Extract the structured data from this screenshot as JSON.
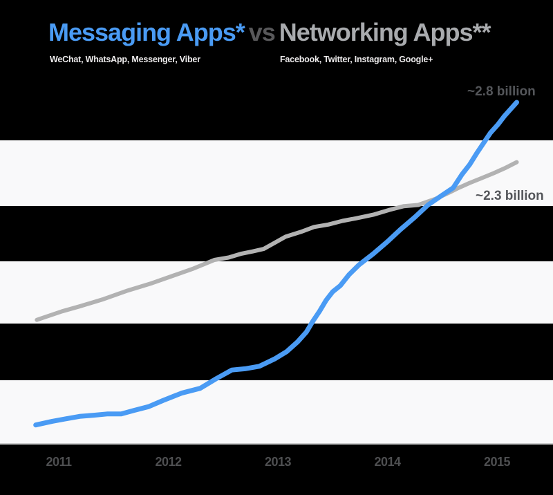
{
  "header": {
    "title_messaging": "Messaging Apps*",
    "title_vs": "vs",
    "title_networking": "Networking Apps**",
    "subtitle_messaging": "WeChat, WhatsApp, Messenger, Viber",
    "subtitle_networking": "Facebook, Twitter, Instagram, Google+"
  },
  "colors": {
    "messaging_line": "#4a9bf4",
    "networking_line": "#b2b2b2",
    "title_messaging": "#4a9bf4",
    "title_vs": "#58585a",
    "title_networking": "#a9abae",
    "subtitle_text": "#edebec",
    "annotation_text": "#54565a",
    "year_label": "#4e4f51",
    "band_white": "#f9f9fa",
    "background": "#000000",
    "axis_line": "#cbcccd"
  },
  "chart_data": {
    "type": "line",
    "title": "Messaging Apps* vs Networking Apps**",
    "xlabel": "",
    "ylabel": "",
    "value_unit": "billion",
    "x_ticks": [
      "2011",
      "2012",
      "2013",
      "2014",
      "2015"
    ],
    "xlim": [
      2010.75,
      2015.25
    ],
    "ylim": [
      0,
      3.0
    ],
    "gridbands_white_value_ranges": [
      [
        0,
        0.5
      ],
      [
        1.0,
        1.5
      ],
      [
        2.0,
        2.5
      ]
    ],
    "legend": "color-coded title",
    "annotations": [
      {
        "text": "~2.8 billion",
        "series": "Messaging Apps",
        "at_x": 2015.18,
        "at_y": 2.8
      },
      {
        "text": "~2.3 billion",
        "series": "Networking Apps",
        "at_x": 2015.18,
        "at_y": 2.31
      }
    ],
    "series": [
      {
        "name": "Messaging Apps",
        "color_key": "messaging_line",
        "stroke_width": 7,
        "points": [
          [
            2010.79,
            0.16
          ],
          [
            2010.94,
            0.19
          ],
          [
            2011.06,
            0.21
          ],
          [
            2011.19,
            0.23
          ],
          [
            2011.32,
            0.24
          ],
          [
            2011.44,
            0.25
          ],
          [
            2011.57,
            0.25
          ],
          [
            2011.69,
            0.28
          ],
          [
            2011.82,
            0.31
          ],
          [
            2011.95,
            0.36
          ],
          [
            2012.12,
            0.42
          ],
          [
            2012.29,
            0.46
          ],
          [
            2012.44,
            0.54
          ],
          [
            2012.58,
            0.61
          ],
          [
            2012.7,
            0.62
          ],
          [
            2012.83,
            0.64
          ],
          [
            2012.97,
            0.7
          ],
          [
            2013.08,
            0.76
          ],
          [
            2013.18,
            0.84
          ],
          [
            2013.26,
            0.92
          ],
          [
            2013.32,
            1.01
          ],
          [
            2013.38,
            1.09
          ],
          [
            2013.44,
            1.18
          ],
          [
            2013.5,
            1.25
          ],
          [
            2013.57,
            1.3
          ],
          [
            2013.65,
            1.39
          ],
          [
            2013.74,
            1.47
          ],
          [
            2013.87,
            1.56
          ],
          [
            2014.0,
            1.66
          ],
          [
            2014.12,
            1.76
          ],
          [
            2014.25,
            1.86
          ],
          [
            2014.37,
            1.96
          ],
          [
            2014.5,
            2.04
          ],
          [
            2014.6,
            2.1
          ],
          [
            2014.68,
            2.21
          ],
          [
            2014.75,
            2.29
          ],
          [
            2014.82,
            2.39
          ],
          [
            2014.88,
            2.47
          ],
          [
            2014.94,
            2.55
          ],
          [
            2015.01,
            2.62
          ],
          [
            2015.07,
            2.69
          ],
          [
            2015.13,
            2.75
          ],
          [
            2015.18,
            2.8
          ]
        ]
      },
      {
        "name": "Networking Apps",
        "color_key": "networking_line",
        "stroke_width": 6,
        "points": [
          [
            2010.8,
            1.02
          ],
          [
            2011.03,
            1.09
          ],
          [
            2011.19,
            1.13
          ],
          [
            2011.41,
            1.19
          ],
          [
            2011.63,
            1.26
          ],
          [
            2011.85,
            1.32
          ],
          [
            2012.04,
            1.38
          ],
          [
            2012.23,
            1.44
          ],
          [
            2012.42,
            1.51
          ],
          [
            2012.55,
            1.53
          ],
          [
            2012.66,
            1.56
          ],
          [
            2012.77,
            1.58
          ],
          [
            2012.87,
            1.6
          ],
          [
            2012.99,
            1.66
          ],
          [
            2013.07,
            1.7
          ],
          [
            2013.21,
            1.74
          ],
          [
            2013.33,
            1.78
          ],
          [
            2013.46,
            1.8
          ],
          [
            2013.59,
            1.83
          ],
          [
            2013.71,
            1.85
          ],
          [
            2013.87,
            1.88
          ],
          [
            2014.02,
            1.92
          ],
          [
            2014.15,
            1.95
          ],
          [
            2014.28,
            1.96
          ],
          [
            2014.44,
            2.01
          ],
          [
            2014.56,
            2.06
          ],
          [
            2014.65,
            2.1
          ],
          [
            2014.75,
            2.14
          ],
          [
            2014.86,
            2.18
          ],
          [
            2014.97,
            2.22
          ],
          [
            2015.07,
            2.26
          ],
          [
            2015.18,
            2.31
          ]
        ]
      }
    ]
  }
}
